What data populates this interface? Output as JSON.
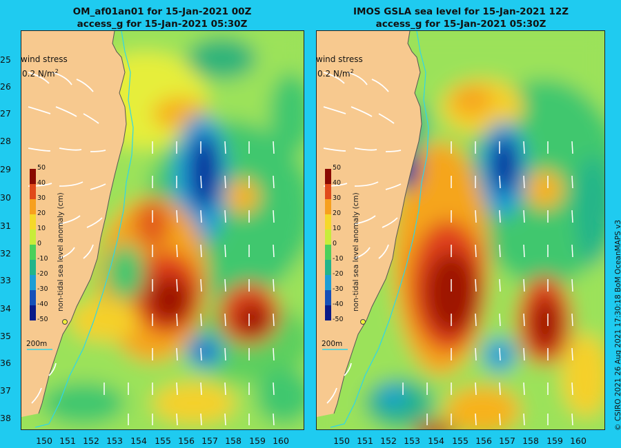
{
  "panels": [
    {
      "title_line1": "OM_af01an01 for 15-Jan-2021 00Z",
      "title_line2": "access_g for 15-Jan-2021 05:30Z"
    },
    {
      "title_line1": "IMOS GSLA sea level  for 15-Jan-2021 12Z",
      "title_line2": "access_g for 15-Jan-2021 05:30Z"
    }
  ],
  "wind_stress": {
    "label": "wind stress",
    "scale_label": "0.2 N/m",
    "unit_superscript": "2"
  },
  "colorbar": {
    "title": "non-tidal sea level anomaly (cm)",
    "ticks": [
      "50",
      "40",
      "30",
      "20",
      "10",
      "0",
      "-10",
      "-20",
      "-30",
      "-40",
      "-50"
    ]
  },
  "depth_contour_label": "200m",
  "y_ticks": [
    "25",
    "26",
    "27",
    "28",
    "29",
    "30",
    "31",
    "32",
    "33",
    "34",
    "35",
    "36",
    "37",
    "38"
  ],
  "x_ticks": [
    "150",
    "151",
    "152",
    "153",
    "154",
    "155",
    "156",
    "157",
    "158",
    "159",
    "160"
  ],
  "credit": "© CSIRO 2021   26 Aug 2021 17:30:18 BoM OceanMAPS v3",
  "colors": {
    "land": "#f7c98f",
    "background": "#1fcbf0",
    "high": "#8b0a00",
    "low": "#0a1a88",
    "neutral": "#9be25a"
  }
}
